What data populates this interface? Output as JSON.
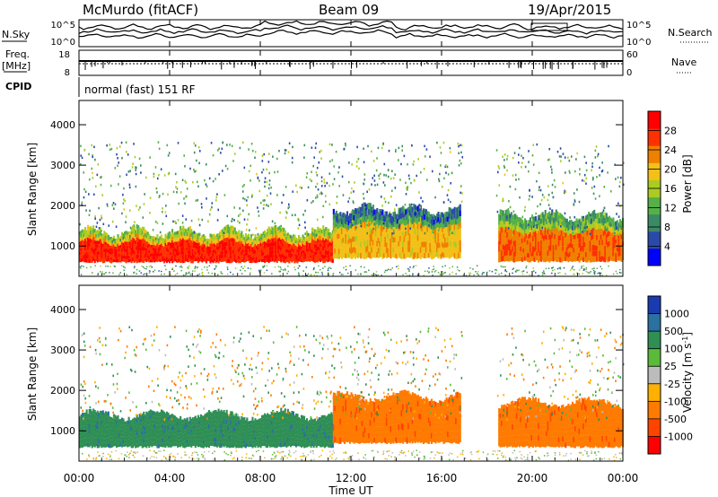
{
  "header": {
    "station": "McMurdo (fitACF)",
    "beam": "Beam 09",
    "date": "19/Apr/2015"
  },
  "status_panel": {
    "nsky_label": "N.Sky",
    "nsky_ticks": [
      "10^5",
      "10^0"
    ],
    "nsearch_label": "N.Search",
    "nsearch_ticks": [
      "10^5",
      "10^0"
    ],
    "freq_label": "Freq.",
    "freq_unit": "[MHz]",
    "freq_ticks": [
      "18",
      "8"
    ],
    "nave_label": "Nave",
    "nave_ticks": [
      "60",
      "0"
    ],
    "cpid_label": "CPID",
    "cpid_value": "normal (fast) 151 RF"
  },
  "colors": {
    "power_scale": [
      "#0000ff",
      "#2a4aaa",
      "#3a8a66",
      "#55b048",
      "#aacc22",
      "#f2c018",
      "#f08000",
      "#ff3000",
      "#ff0000"
    ],
    "velocity_scale": [
      "#ff0000",
      "#ff4400",
      "#ff7a00",
      "#ffb000",
      "#bcbcbc",
      "#5abb3a",
      "#2f8f55",
      "#2a70a0",
      "#1a3ab0"
    ]
  },
  "chart_data": [
    {
      "type": "heatmap",
      "name": "power",
      "ylabel": "Slant Range [km]",
      "yticks": [
        "4000",
        "3000",
        "2000",
        "1000"
      ],
      "ylim": [
        250,
        4600
      ],
      "xlim": [
        0,
        24
      ],
      "colorbar_label": "Power [dB]",
      "colorbar_ticks": [
        "28",
        "24",
        "20",
        "16",
        "12",
        "8",
        "4"
      ],
      "colorbar_range": [
        0,
        32
      ],
      "segments": [
        {
          "t0": 0.0,
          "t1": 11.2,
          "r0": 600,
          "r1": 1350,
          "value": 28
        },
        {
          "t0": 11.2,
          "t1": 16.8,
          "r0": 700,
          "r1": 1900,
          "value": 20
        },
        {
          "t0": 18.5,
          "t1": 24.0,
          "r0": 620,
          "r1": 1750,
          "value": 24
        }
      ]
    },
    {
      "type": "heatmap",
      "name": "velocity",
      "ylabel": "Slant Range [km]",
      "yticks": [
        "4000",
        "3000",
        "2000",
        "1000"
      ],
      "ylim": [
        250,
        4600
      ],
      "xlim": [
        0,
        24
      ],
      "colorbar_label": "Velocity [m s",
      "colorbar_label_sup": "-1",
      "colorbar_ticks": [
        "1000",
        "500",
        "100",
        "25",
        "-25",
        "-100",
        "-500",
        "-1000"
      ],
      "segments": [
        {
          "t0": 0.0,
          "t1": 11.2,
          "r0": 600,
          "r1": 1400,
          "value": 300
        },
        {
          "t0": 11.2,
          "t1": 16.8,
          "r0": 700,
          "r1": 1850,
          "value": -200
        },
        {
          "t0": 18.5,
          "t1": 24.0,
          "r0": 600,
          "r1": 1700,
          "value": -200
        }
      ]
    }
  ],
  "x_axis": {
    "label": "Time UT",
    "ticks": [
      "00:00",
      "04:00",
      "08:00",
      "12:00",
      "16:00",
      "20:00",
      "00:00"
    ]
  }
}
